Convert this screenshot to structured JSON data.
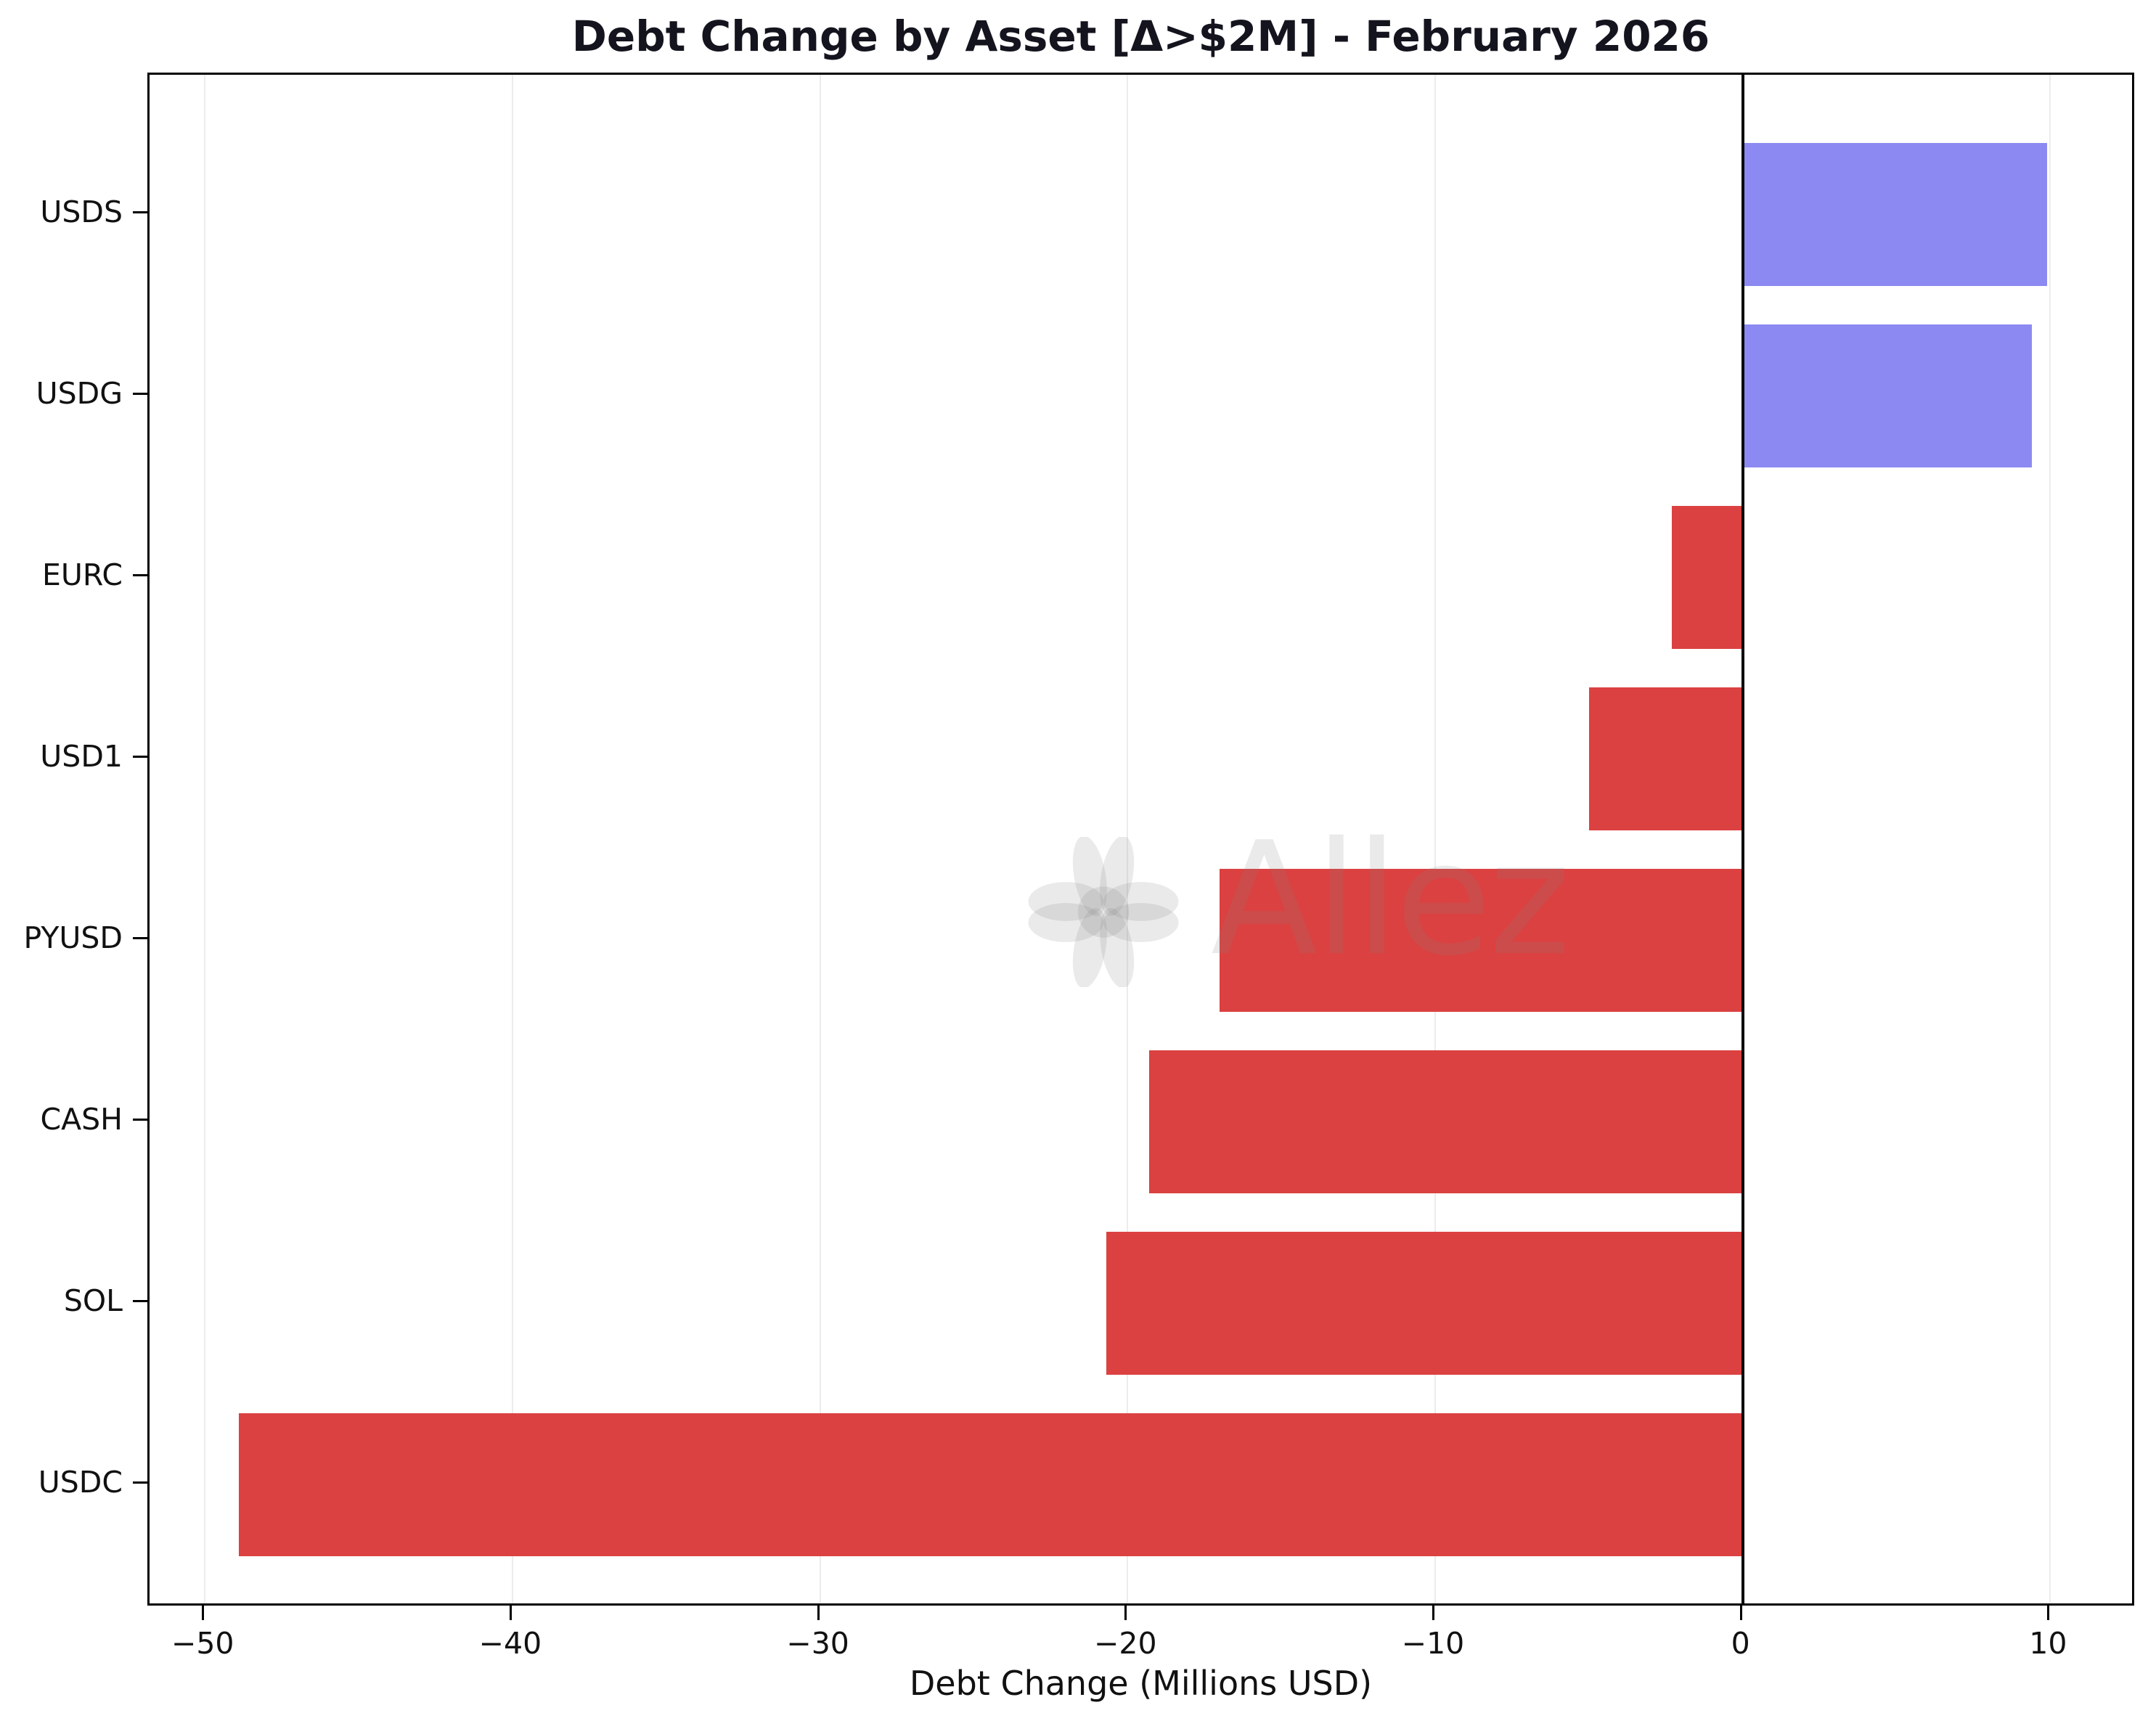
{
  "chart": {
    "title": "Debt Change by Asset [Δ>$2M] - February 2026",
    "xlabel": "Debt Change (Millions USD)",
    "watermark_text": "Allez"
  },
  "chart_data": {
    "type": "bar",
    "orientation": "horizontal",
    "title": "Debt Change by Asset [Δ>$2M] - February 2026",
    "xlabel": "Debt Change (Millions USD)",
    "ylabel": "",
    "categories_top_to_bottom": [
      "USDS",
      "USDG",
      "EURC",
      "USD1",
      "PYUSD",
      "CASH",
      "SOL",
      "USDC"
    ],
    "values_millions_usd": [
      9.9,
      9.4,
      -2.3,
      -5.0,
      -17.0,
      -19.3,
      -20.7,
      -48.9
    ],
    "xlim": [
      -51.8,
      12.8
    ],
    "xticks": [
      -50,
      -40,
      -30,
      -20,
      -10,
      0,
      10
    ],
    "xtick_labels": [
      "−50",
      "−40",
      "−30",
      "−20",
      "−10",
      "0",
      "10"
    ],
    "grid": true,
    "zero_line": true,
    "legend": null,
    "colors": {
      "positive_bar": "#8c89f2",
      "negative_bar": "#db4141",
      "gridline": "#ececec",
      "spine": "#000000",
      "watermark": "rgba(130,130,130,0.17)"
    }
  }
}
